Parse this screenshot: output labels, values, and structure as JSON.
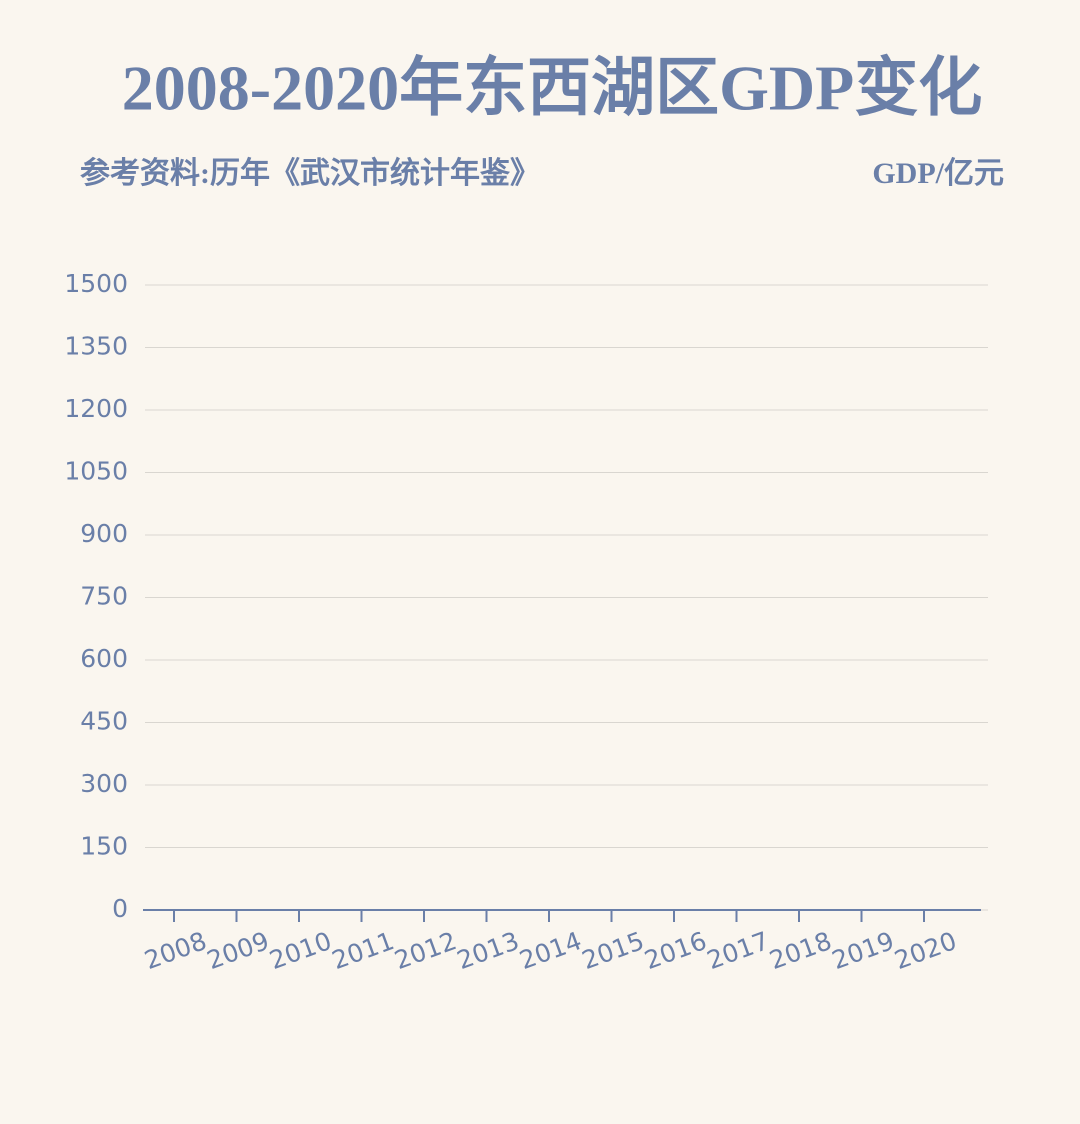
{
  "chart_data": {
    "type": "line",
    "title": "2008-2020年东西湖区GDP变化",
    "subtitle": "参考资料:历年《武汉市统计年鉴》",
    "y_axis_label": "GDP/亿元",
    "categories": [
      "2008",
      "2009",
      "2010",
      "2011",
      "2012",
      "2013",
      "2014",
      "2015",
      "2016",
      "2017",
      "2018",
      "2019",
      "2020"
    ],
    "ylim": [
      0,
      1500
    ],
    "yticks": [
      0,
      150,
      300,
      450,
      600,
      750,
      900,
      1050,
      1200,
      1350,
      1500
    ],
    "grid": true
  }
}
